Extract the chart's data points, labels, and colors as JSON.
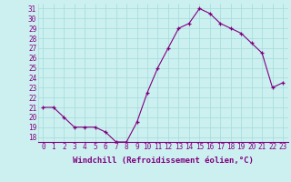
{
  "hours": [
    0,
    1,
    2,
    3,
    4,
    5,
    6,
    7,
    8,
    9,
    10,
    11,
    12,
    13,
    14,
    15,
    16,
    17,
    18,
    19,
    20,
    21,
    22,
    23
  ],
  "values": [
    21,
    21,
    20,
    19,
    19,
    19,
    18.5,
    17.5,
    17.5,
    19.5,
    22.5,
    25,
    27,
    29,
    29.5,
    31,
    30.5,
    29.5,
    29,
    28.5,
    27.5,
    26.5,
    23,
    23.5
  ],
  "line_color": "#800080",
  "marker_color": "#800080",
  "bg_color": "#ccf0f0",
  "grid_color": "#aadddd",
  "xlabel": "Windchill (Refroidissement éolien,°C)",
  "ylim": [
    17.5,
    31.5
  ],
  "xlim": [
    -0.5,
    23.5
  ],
  "yticks": [
    18,
    19,
    20,
    21,
    22,
    23,
    24,
    25,
    26,
    27,
    28,
    29,
    30,
    31
  ],
  "xticks": [
    0,
    1,
    2,
    3,
    4,
    5,
    6,
    7,
    8,
    9,
    10,
    11,
    12,
    13,
    14,
    15,
    16,
    17,
    18,
    19,
    20,
    21,
    22,
    23
  ],
  "tick_fontsize": 5.5,
  "xlabel_fontsize": 6.5
}
